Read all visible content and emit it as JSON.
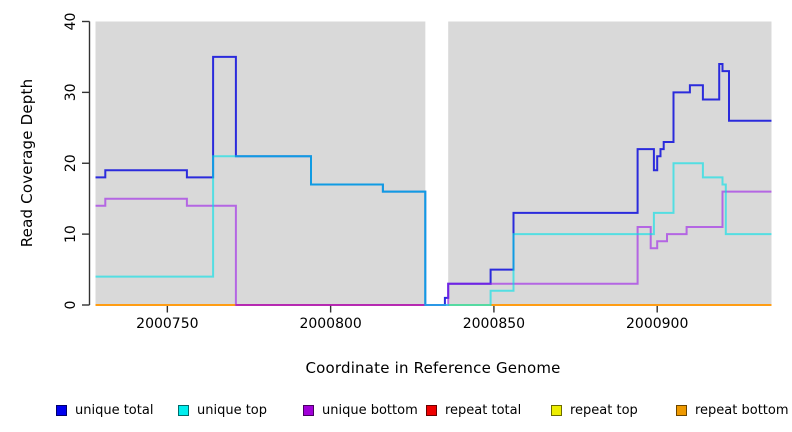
{
  "figure": {
    "plot_bg_color": "#D9D9D9",
    "axis_color": "#333333",
    "x_axis": {
      "title": "Coordinate in Reference Genome",
      "tick_labels": [
        "2000750",
        "2000800",
        "2000850",
        "2000900"
      ],
      "tick_values": [
        2000750,
        2000800,
        2000850,
        2000900
      ],
      "lim": [
        2000728,
        2000935
      ]
    },
    "y_axis": {
      "title": "Read Coverage Depth",
      "tick_labels": [
        "0",
        "10",
        "20",
        "30",
        "40"
      ],
      "tick_values": [
        0,
        10,
        20,
        30,
        40
      ],
      "lim": [
        0,
        40
      ]
    }
  },
  "chart_data": {
    "type": "line",
    "subtype": "coverage-step-plot",
    "title": "",
    "xlabel": "Coordinate in Reference Genome",
    "ylabel": "Read Coverage Depth",
    "xlim": [
      2000728,
      2000935
    ],
    "ylim": [
      0,
      40
    ],
    "grid": "off",
    "legend_position": "bottom",
    "no_data_gap_x": [
      2000829,
      2000836
    ],
    "draw_order": [
      "repeat total",
      "repeat top",
      "repeat bottom",
      "unique total",
      "unique bottom",
      "unique top"
    ],
    "series": [
      {
        "name": "unique total",
        "line_color": "#2B2BDC",
        "legend_color": "#0000EE",
        "opacity": 1,
        "parts": [
          {
            "steps": [
              [
                2000728,
                18
              ],
              [
                2000731,
                19
              ],
              [
                2000756,
                18
              ],
              [
                2000764,
                35
              ],
              [
                2000771,
                21
              ],
              [
                2000794,
                17
              ],
              [
                2000816,
                16
              ],
              [
                2000829,
                0
              ],
              [
                2000835,
                1
              ],
              [
                2000836,
                3
              ],
              [
                2000849,
                5
              ],
              [
                2000856,
                13
              ],
              [
                2000894,
                22
              ],
              [
                2000899,
                19
              ],
              [
                2000900,
                21
              ],
              [
                2000901,
                22
              ],
              [
                2000902,
                23
              ],
              [
                2000905,
                30
              ],
              [
                2000910,
                31
              ],
              [
                2000914,
                29
              ],
              [
                2000919,
                34
              ],
              [
                2000920,
                33
              ],
              [
                2000922,
                26
              ]
            ],
            "end": 2000935
          }
        ]
      },
      {
        "name": "unique top",
        "line_color": "#00E0E6",
        "legend_color": "#00EEEE",
        "opacity": 0.62,
        "parts": [
          {
            "steps": [
              [
                2000728,
                4
              ],
              [
                2000764,
                21
              ],
              [
                2000794,
                17
              ],
              [
                2000816,
                16
              ],
              [
                2000829,
                0
              ],
              [
                2000849,
                2
              ],
              [
                2000856,
                10
              ],
              [
                2000899,
                13
              ],
              [
                2000905,
                20
              ],
              [
                2000914,
                18
              ],
              [
                2000920,
                17
              ],
              [
                2000921,
                10
              ]
            ],
            "end": 2000935
          }
        ]
      },
      {
        "name": "unique bottom",
        "line_color": "#9D1FE8",
        "legend_color": "#A100D8",
        "opacity": 0.62,
        "parts": [
          {
            "steps": [
              [
                2000728,
                14
              ],
              [
                2000731,
                15
              ],
              [
                2000756,
                14
              ],
              [
                2000771,
                0
              ],
              [
                2000836,
                3
              ],
              [
                2000894,
                11
              ],
              [
                2000898,
                8
              ],
              [
                2000900,
                9
              ],
              [
                2000903,
                10
              ],
              [
                2000909,
                11
              ],
              [
                2000920,
                16
              ]
            ],
            "end": 2000935
          }
        ]
      },
      {
        "name": "repeat total",
        "line_color": "#DD1133",
        "legend_color": "#EE0000",
        "opacity": 0.8,
        "parts": [
          {
            "steps": [
              [
                2000728,
                0
              ]
            ],
            "end": 2000829
          },
          {
            "steps": [
              [
                2000836,
                0
              ]
            ],
            "end": 2000935
          }
        ]
      },
      {
        "name": "repeat top",
        "line_color": "#E0E030",
        "legend_color": "#EDED00",
        "opacity": 0.9,
        "parts": [
          {
            "steps": [
              [
                2000836,
                0
              ]
            ],
            "end": 2000849
          }
        ]
      },
      {
        "name": "repeat bottom",
        "line_color": "#FF9D14",
        "legend_color": "#EE9900",
        "opacity": 1,
        "parts": [
          {
            "steps": [
              [
                2000728,
                0
              ]
            ],
            "end": 2000771
          },
          {
            "steps": [
              [
                2000849,
                0
              ]
            ],
            "end": 2000935
          }
        ]
      }
    ]
  },
  "legend": [
    {
      "label": "unique total",
      "color": "#0000EE"
    },
    {
      "label": "unique top",
      "color": "#00EEEE"
    },
    {
      "label": "unique bottom",
      "color": "#A100D8"
    },
    {
      "label": "repeat total",
      "color": "#EE0000"
    },
    {
      "label": "repeat top",
      "color": "#EDED00"
    },
    {
      "label": "repeat bottom",
      "color": "#EE9900"
    }
  ]
}
